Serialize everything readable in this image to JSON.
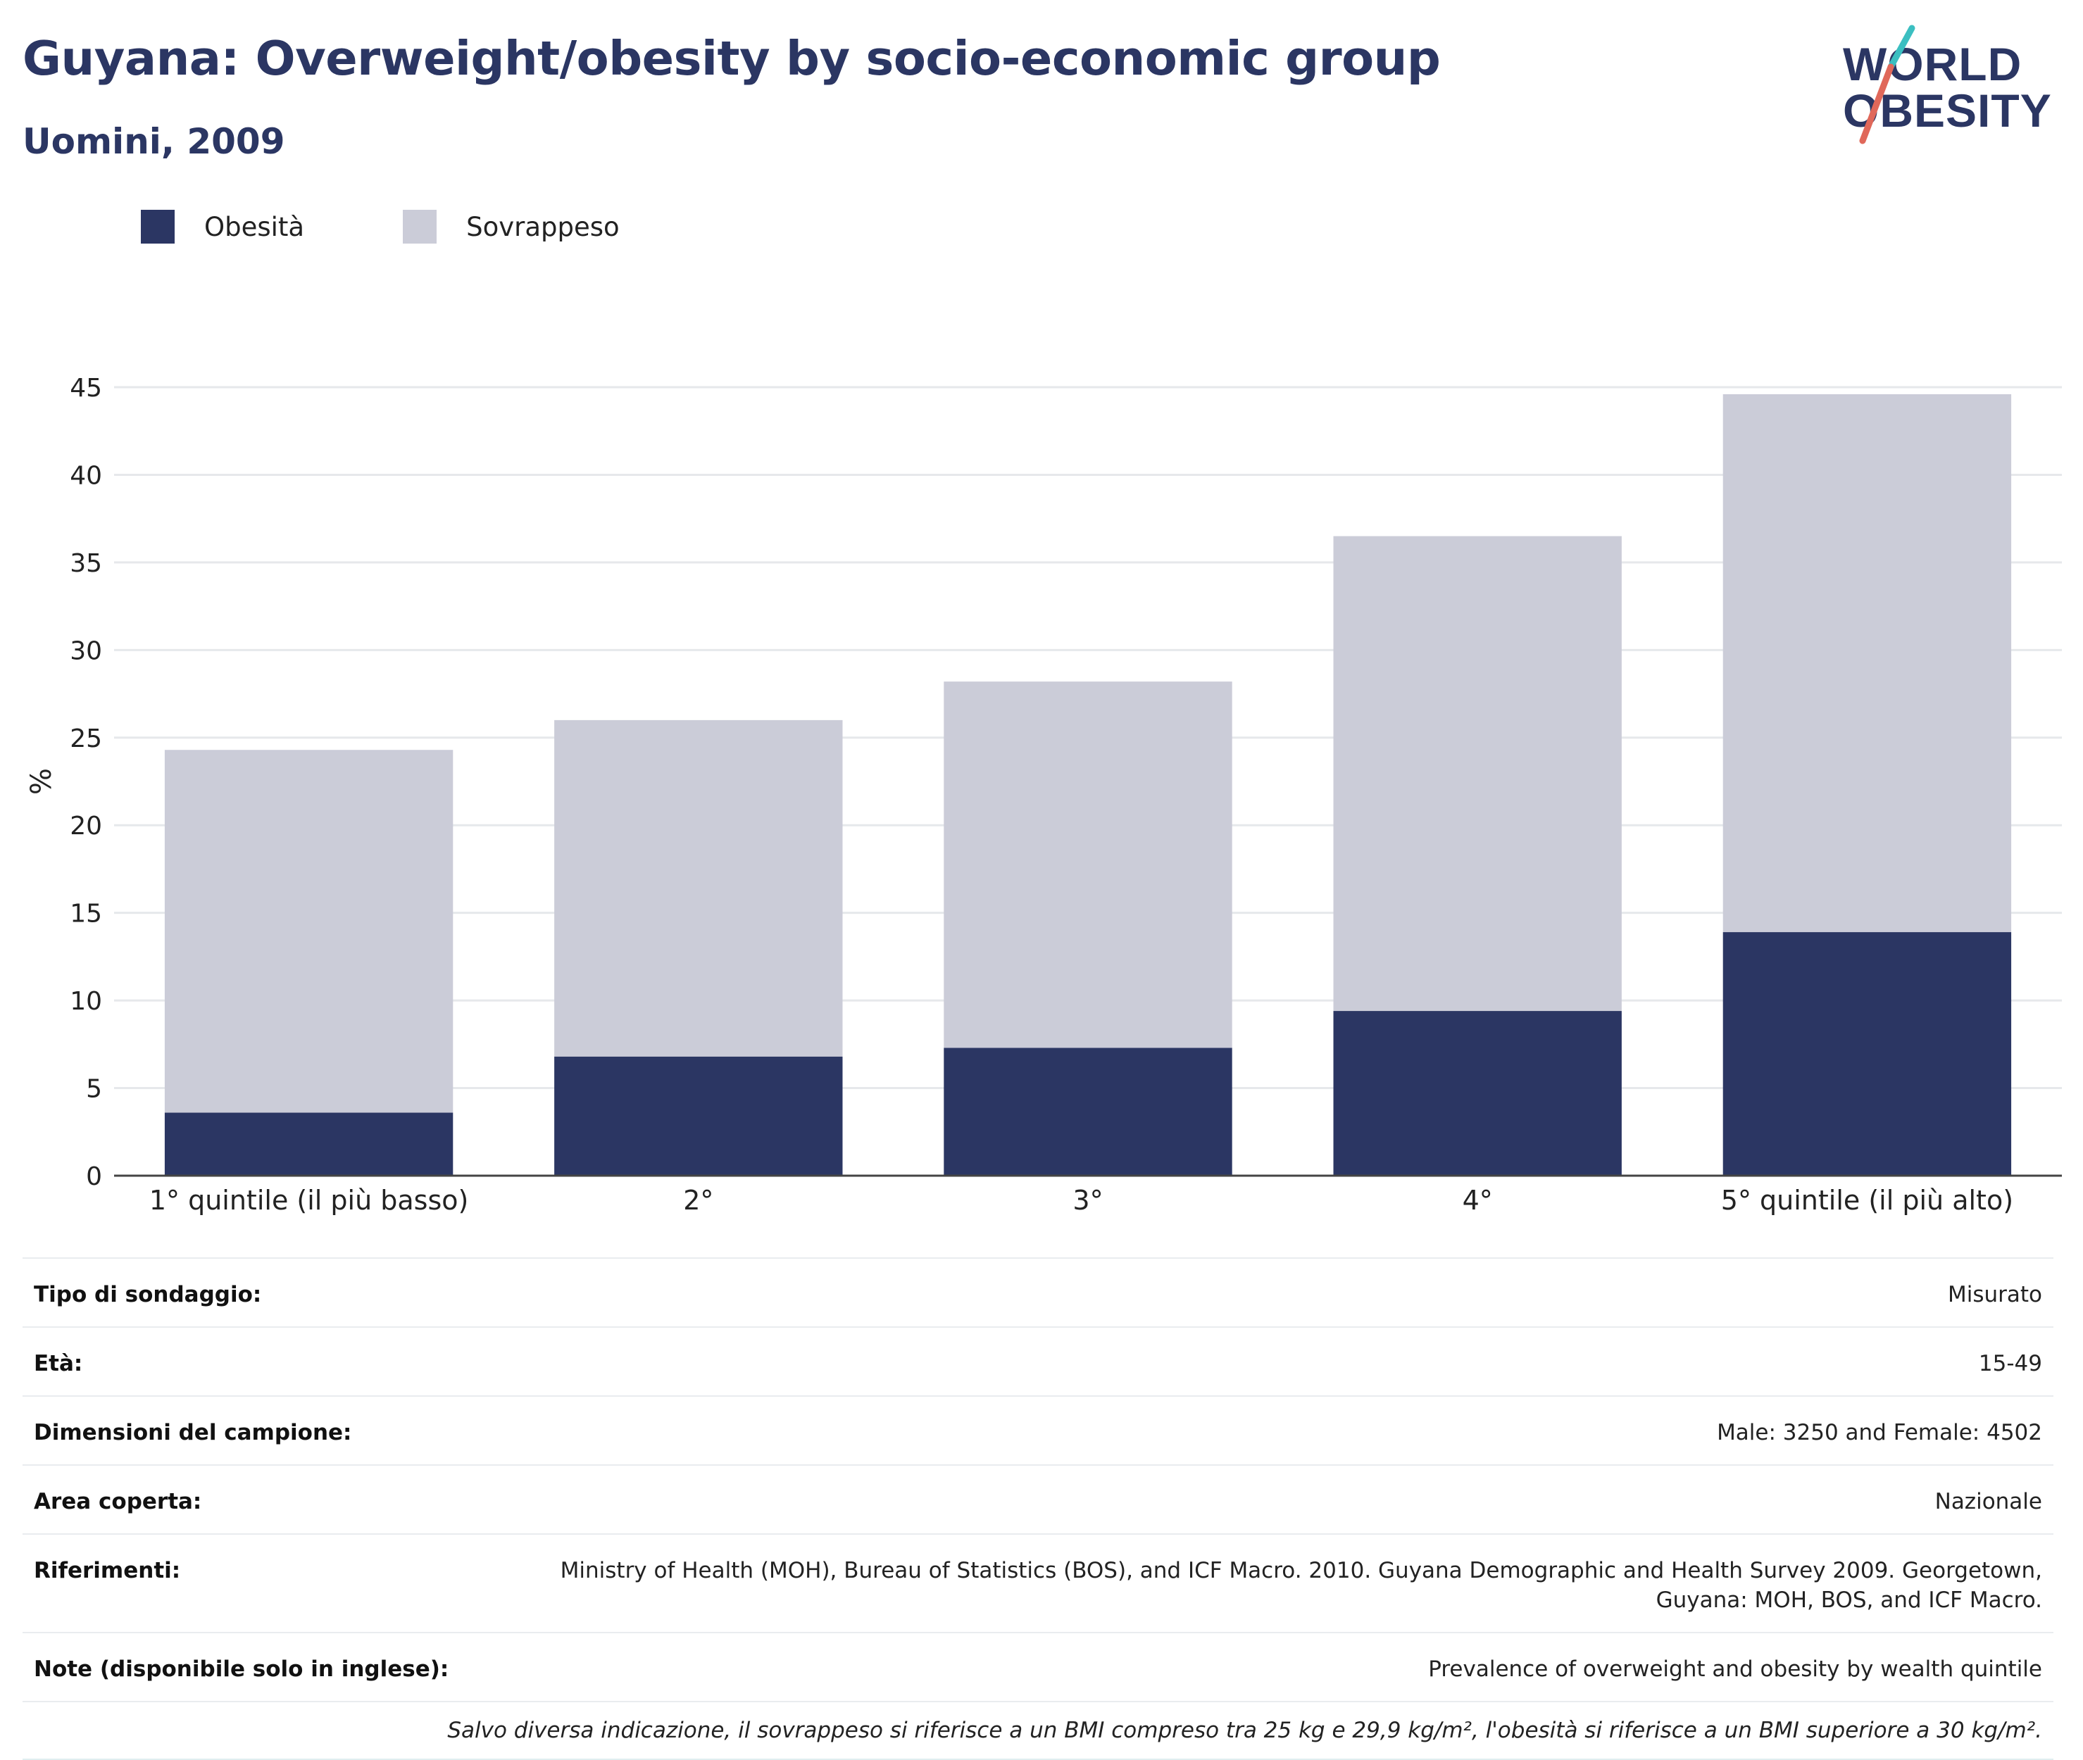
{
  "header": {
    "title": "Guyana: Overweight/obesity by socio-economic group",
    "subtitle": "Uomini, 2009"
  },
  "logo": {
    "line1": "WORLD",
    "line2": "OBESITY"
  },
  "legend": [
    {
      "label": "Obesità",
      "color": "#2b3663"
    },
    {
      "label": "Sovrappeso",
      "color": "#cbccd8"
    }
  ],
  "chart_data": {
    "type": "bar",
    "stacked": true,
    "categories": [
      "1° quintile (il più basso)",
      "2°",
      "3°",
      "4°",
      "5° quintile (il più alto)"
    ],
    "series": [
      {
        "name": "Obesità",
        "values": [
          3.6,
          6.8,
          7.3,
          9.4,
          13.9
        ],
        "color": "#2b3663"
      },
      {
        "name": "Sovrappeso",
        "values": [
          20.7,
          19.2,
          20.9,
          27.1,
          30.7
        ],
        "color": "#cbccd8"
      }
    ],
    "ylabel": "%",
    "ylim": [
      0,
      45
    ],
    "yticks": [
      0,
      5,
      10,
      15,
      20,
      25,
      30,
      35,
      40,
      45
    ],
    "grid": true,
    "legend_position": "top-left"
  },
  "info_table": [
    {
      "key": "Tipo di sondaggio:",
      "value": "Misurato"
    },
    {
      "key": "Età:",
      "value": "15-49"
    },
    {
      "key": "Dimensioni del campione:",
      "value": "Male: 3250 and Female: 4502"
    },
    {
      "key": "Area coperta:",
      "value": "Nazionale"
    },
    {
      "key": "Riferimenti:",
      "value": "Ministry of Health (MOH), Bureau of Statistics (BOS), and ICF Macro. 2010. Guyana Demographic and Health Survey 2009. Georgetown, Guyana: MOH, BOS, and ICF Macro."
    },
    {
      "key": "Note (disponibile solo in inglese):",
      "value": "Prevalence of overweight and obesity by wealth quintile"
    }
  ],
  "footnote": "Salvo diversa indicazione, il sovrappeso si riferisce a un BMI compreso tra 25 kg e 29,9 kg/m², l'obesità si riferisce a un BMI superiore a 30 kg/m²."
}
